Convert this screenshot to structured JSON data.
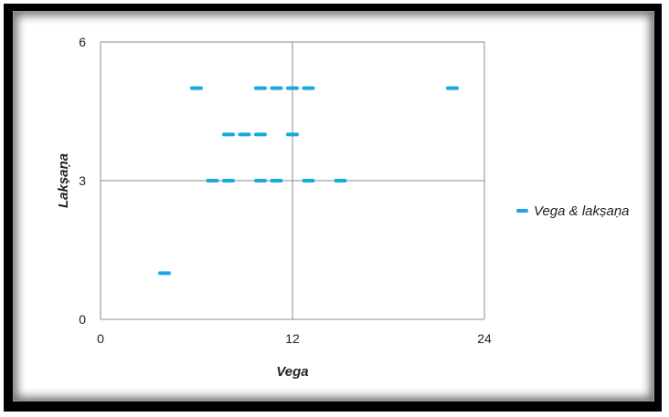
{
  "chart_data": {
    "type": "scatter",
    "xlabel": "Vega",
    "ylabel": "Lakṣaṇa",
    "xlim": [
      0,
      24
    ],
    "ylim": [
      0,
      6
    ],
    "x_ticks": [
      "0",
      "12",
      "24"
    ],
    "y_ticks": [
      "0",
      "3",
      "6"
    ],
    "grid": true,
    "legend_position": "right",
    "series": [
      {
        "name": "Vega & lakṣaṇa",
        "color": "#1aa7e2",
        "marker": "dash",
        "points": [
          {
            "x": 4,
            "y": 1
          },
          {
            "x": 6,
            "y": 5
          },
          {
            "x": 7,
            "y": 3
          },
          {
            "x": 8,
            "y": 3
          },
          {
            "x": 8,
            "y": 4
          },
          {
            "x": 9,
            "y": 4
          },
          {
            "x": 10,
            "y": 4
          },
          {
            "x": 10,
            "y": 5
          },
          {
            "x": 10,
            "y": 3
          },
          {
            "x": 11,
            "y": 3
          },
          {
            "x": 11,
            "y": 5
          },
          {
            "x": 12,
            "y": 5
          },
          {
            "x": 12,
            "y": 4
          },
          {
            "x": 13,
            "y": 3
          },
          {
            "x": 13,
            "y": 5
          },
          {
            "x": 15,
            "y": 3
          },
          {
            "x": 22,
            "y": 5
          }
        ]
      }
    ]
  }
}
